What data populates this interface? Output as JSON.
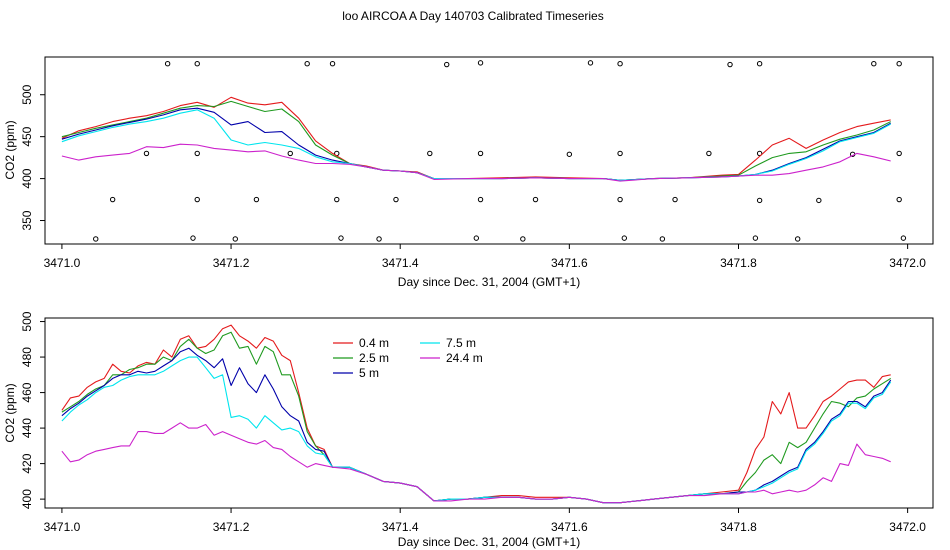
{
  "title": "loo AIRCOA A  Day 140703  Calibrated Timeseries",
  "colors": {
    "0.4 m": "#e41a1c",
    "2.5 m": "#1f9a1f",
    "5 m": "#0000aa",
    "7.5 m": "#00e5ee",
    "24.4 m": "#cc22cc"
  },
  "chart_data": [
    {
      "type": "line",
      "xlabel": "Day since Dec. 31, 2004 (GMT+1)",
      "ylabel": "CO2 (ppm)",
      "xlim": [
        3470.98,
        3472.03
      ],
      "ylim": [
        322,
        545
      ],
      "xticks": [
        "3471.0",
        "3471.2",
        "3471.4",
        "3471.6",
        "3471.8",
        "3472.0"
      ],
      "yticks": [
        "350",
        "400",
        "450",
        "500"
      ],
      "x": [
        3471.0,
        3471.02,
        3471.04,
        3471.06,
        3471.08,
        3471.1,
        3471.12,
        3471.14,
        3471.16,
        3471.18,
        3471.2,
        3471.22,
        3471.24,
        3471.26,
        3471.28,
        3471.3,
        3471.32,
        3471.34,
        3471.36,
        3471.38,
        3471.4,
        3471.42,
        3471.44,
        3471.48,
        3471.52,
        3471.56,
        3471.6,
        3471.64,
        3471.66,
        3471.7,
        3471.74,
        3471.78,
        3471.8,
        3471.82,
        3471.84,
        3471.86,
        3471.88,
        3471.9,
        3471.92,
        3471.94,
        3471.96,
        3471.98
      ],
      "series": [
        {
          "name": "0.4 m",
          "values": [
            448,
            457,
            462,
            468,
            472,
            475,
            480,
            487,
            491,
            485,
            497,
            490,
            488,
            491,
            472,
            445,
            430,
            418,
            415,
            410,
            409,
            408,
            400,
            400,
            401,
            402,
            401,
            400,
            398,
            400,
            401,
            404,
            405,
            422,
            440,
            448,
            436,
            446,
            455,
            462,
            466,
            470
          ]
        },
        {
          "name": "2.5 m",
          "values": [
            450,
            455,
            460,
            464,
            468,
            472,
            478,
            484,
            487,
            486,
            492,
            486,
            480,
            483,
            468,
            440,
            428,
            418,
            414,
            410,
            409,
            407,
            400,
            400,
            400,
            401,
            400,
            400,
            398,
            400,
            401,
            403,
            404,
            415,
            425,
            430,
            432,
            440,
            447,
            452,
            458,
            468
          ]
        },
        {
          "name": "5 m",
          "values": [
            447,
            453,
            458,
            463,
            467,
            471,
            476,
            482,
            484,
            479,
            464,
            468,
            455,
            456,
            440,
            428,
            422,
            418,
            414,
            410,
            409,
            407,
            400,
            400,
            400,
            401,
            400,
            400,
            398,
            400,
            401,
            402,
            403,
            405,
            410,
            418,
            425,
            435,
            445,
            450,
            455,
            466
          ]
        },
        {
          "name": "7.5 m",
          "values": [
            444,
            451,
            456,
            461,
            465,
            468,
            472,
            478,
            482,
            472,
            446,
            440,
            443,
            440,
            436,
            426,
            420,
            418,
            414,
            410,
            409,
            407,
            400,
            400,
            400,
            401,
            400,
            400,
            398,
            400,
            401,
            402,
            403,
            405,
            409,
            417,
            424,
            433,
            444,
            449,
            454,
            465
          ]
        },
        {
          "name": "24.4 m",
          "values": [
            427,
            422,
            426,
            428,
            430,
            438,
            437,
            441,
            440,
            436,
            434,
            432,
            433,
            427,
            422,
            418,
            418,
            417,
            414,
            410,
            409,
            407,
            399,
            400,
            400,
            401,
            400,
            400,
            397,
            400,
            401,
            402,
            403,
            404,
            404,
            406,
            410,
            414,
            420,
            430,
            426,
            421
          ]
        }
      ],
      "scatter": {
        "x": [
          3471.125,
          3471.16,
          3471.29,
          3471.32,
          3471.455,
          3471.495,
          3471.625,
          3471.66,
          3471.79,
          3471.825,
          3471.96,
          3471.99,
          3471.1,
          3471.16,
          3471.27,
          3471.325,
          3471.435,
          3471.495,
          3471.6,
          3471.66,
          3471.765,
          3471.825,
          3471.935,
          3471.99,
          3471.06,
          3471.16,
          3471.23,
          3471.325,
          3471.395,
          3471.495,
          3471.56,
          3471.66,
          3471.725,
          3471.825,
          3471.895,
          3471.99,
          3471.04,
          3471.155,
          3471.205,
          3471.33,
          3471.375,
          3471.49,
          3471.545,
          3471.665,
          3471.71,
          3471.82,
          3471.87,
          3471.995
        ],
        "y": [
          537,
          537,
          537,
          537,
          536,
          538,
          538,
          537,
          536,
          537,
          537,
          537,
          430,
          430,
          430,
          430,
          430,
          430,
          429,
          430,
          430,
          430,
          429,
          430,
          375,
          375,
          375,
          375,
          375,
          375,
          375,
          375,
          375,
          374,
          374,
          375,
          328,
          329,
          328,
          329,
          328,
          329,
          328,
          329,
          328,
          329,
          328,
          329
        ]
      }
    },
    {
      "type": "line",
      "xlabel": "Day since Dec. 31, 2004 (GMT+1)",
      "ylabel": "CO2 (ppm)",
      "xlim": [
        3470.98,
        3472.03
      ],
      "ylim": [
        395,
        502
      ],
      "xticks": [
        "3471.0",
        "3471.2",
        "3471.4",
        "3471.6",
        "3471.8",
        "3472.0"
      ],
      "yticks": [
        "400",
        "420",
        "440",
        "460",
        "480",
        "500"
      ],
      "legend": [
        "0.4 m",
        "2.5 m",
        "5 m",
        "7.5 m",
        "24.4 m"
      ],
      "x": [
        3471.0,
        3471.01,
        3471.02,
        3471.03,
        3471.04,
        3471.05,
        3471.06,
        3471.07,
        3471.08,
        3471.09,
        3471.1,
        3471.11,
        3471.12,
        3471.13,
        3471.14,
        3471.15,
        3471.16,
        3471.17,
        3471.18,
        3471.19,
        3471.2,
        3471.21,
        3471.22,
        3471.23,
        3471.24,
        3471.25,
        3471.26,
        3471.27,
        3471.28,
        3471.29,
        3471.3,
        3471.31,
        3471.32,
        3471.34,
        3471.36,
        3471.38,
        3471.4,
        3471.42,
        3471.44,
        3471.46,
        3471.48,
        3471.5,
        3471.52,
        3471.54,
        3471.56,
        3471.58,
        3471.6,
        3471.62,
        3471.64,
        3471.66,
        3471.68,
        3471.7,
        3471.72,
        3471.74,
        3471.76,
        3471.78,
        3471.8,
        3471.81,
        3471.82,
        3471.83,
        3471.84,
        3471.85,
        3471.86,
        3471.87,
        3471.88,
        3471.89,
        3471.9,
        3471.91,
        3471.92,
        3471.93,
        3471.94,
        3471.95,
        3471.96,
        3471.97,
        3471.98
      ],
      "series": [
        {
          "name": "0.4 m",
          "values": [
            450,
            457,
            458,
            463,
            466,
            468,
            476,
            472,
            471,
            475,
            477,
            476,
            484,
            480,
            490,
            492,
            485,
            486,
            490,
            496,
            498,
            492,
            489,
            485,
            491,
            489,
            481,
            478,
            460,
            440,
            430,
            428,
            418,
            418,
            414,
            410,
            409,
            407,
            399,
            400,
            400,
            401,
            402,
            402,
            401,
            401,
            401,
            400,
            398,
            398,
            399,
            400,
            401,
            402,
            403,
            404,
            405,
            415,
            428,
            435,
            455,
            448,
            460,
            440,
            440,
            447,
            455,
            458,
            462,
            466,
            467,
            467,
            463,
            469,
            470
          ]
        },
        {
          "name": "2.5 m",
          "values": [
            449,
            452,
            455,
            459,
            462,
            464,
            470,
            470,
            473,
            474,
            476,
            476,
            480,
            478,
            486,
            490,
            485,
            482,
            484,
            492,
            494,
            485,
            486,
            476,
            486,
            483,
            470,
            470,
            458,
            438,
            430,
            425,
            418,
            418,
            414,
            410,
            409,
            407,
            399,
            400,
            400,
            401,
            401,
            401,
            400,
            400,
            401,
            400,
            398,
            398,
            399,
            400,
            401,
            402,
            403,
            403,
            404,
            410,
            415,
            422,
            425,
            420,
            432,
            429,
            432,
            440,
            448,
            455,
            454,
            452,
            457,
            458,
            462,
            465,
            468
          ]
        },
        {
          "name": "5 m",
          "values": [
            447,
            451,
            454,
            458,
            461,
            464,
            468,
            470,
            470,
            472,
            471,
            472,
            475,
            478,
            483,
            485,
            481,
            478,
            474,
            479,
            464,
            474,
            465,
            460,
            470,
            462,
            452,
            447,
            444,
            432,
            428,
            427,
            418,
            418,
            414,
            410,
            409,
            407,
            399,
            400,
            400,
            401,
            401,
            401,
            400,
            400,
            401,
            400,
            398,
            398,
            399,
            400,
            401,
            402,
            403,
            403,
            404,
            404,
            405,
            408,
            410,
            413,
            416,
            418,
            428,
            432,
            438,
            445,
            448,
            455,
            455,
            452,
            458,
            460,
            467
          ]
        },
        {
          "name": "7.5 m",
          "values": [
            444,
            449,
            453,
            456,
            460,
            463,
            464,
            467,
            469,
            470,
            470,
            470,
            472,
            475,
            478,
            480,
            480,
            474,
            468,
            470,
            446,
            447,
            445,
            440,
            447,
            443,
            439,
            440,
            438,
            430,
            426,
            425,
            418,
            418,
            414,
            410,
            409,
            407,
            399,
            400,
            400,
            401,
            401,
            401,
            400,
            400,
            401,
            400,
            398,
            398,
            399,
            400,
            401,
            402,
            403,
            403,
            403,
            404,
            405,
            407,
            409,
            412,
            415,
            417,
            427,
            431,
            437,
            444,
            447,
            454,
            454,
            451,
            457,
            459,
            466
          ]
        },
        {
          "name": "24.4 m",
          "values": [
            427,
            421,
            422,
            425,
            427,
            428,
            429,
            430,
            430,
            438,
            438,
            437,
            437,
            440,
            443,
            440,
            440,
            442,
            436,
            438,
            436,
            434,
            432,
            431,
            433,
            429,
            428,
            424,
            421,
            418,
            420,
            419,
            418,
            417,
            414,
            410,
            409,
            407,
            399,
            399,
            400,
            400,
            401,
            401,
            400,
            400,
            401,
            400,
            398,
            398,
            399,
            400,
            401,
            402,
            402,
            403,
            403,
            404,
            404,
            405,
            403,
            404,
            405,
            404,
            405,
            408,
            412,
            410,
            420,
            419,
            431,
            425,
            424,
            423,
            421
          ]
        }
      ]
    }
  ]
}
